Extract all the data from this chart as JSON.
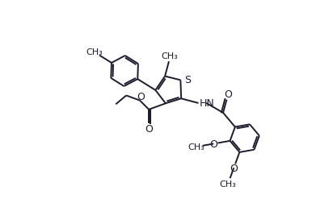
{
  "bg_color": "#ffffff",
  "line_color": "#1c1c2e",
  "bond_lw": 1.4,
  "figsize": [
    4.07,
    2.53
  ],
  "dpi": 100,
  "xlim": [
    0,
    10.2
  ],
  "ylim": [
    0,
    6.35
  ]
}
